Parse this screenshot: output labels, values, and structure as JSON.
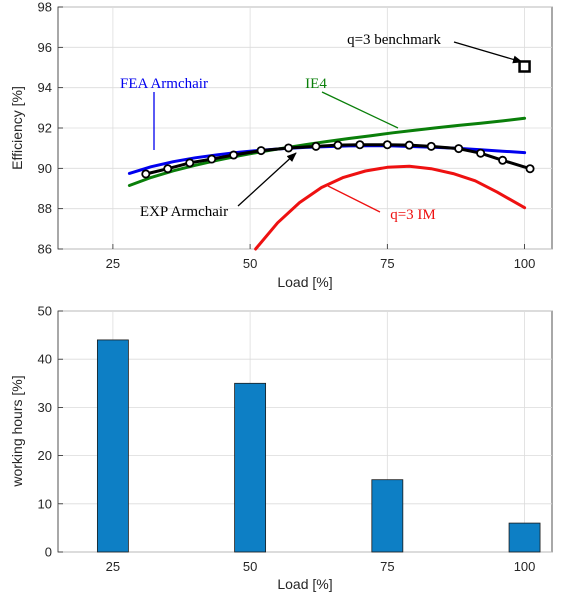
{
  "chart_data": [
    {
      "type": "line",
      "xlabel": "Load [%]",
      "ylabel": "Efficiency [%]",
      "xlim": [
        15,
        105
      ],
      "ylim": [
        86,
        98
      ],
      "xticks": [
        25,
        50,
        75,
        100
      ],
      "yticks": [
        86,
        88,
        90,
        92,
        94,
        96,
        98
      ],
      "grid": true,
      "series": [
        {
          "name": "FEA Armchair",
          "color": "#0000ee",
          "x": [
            28,
            32,
            36,
            40,
            44,
            48,
            52,
            56,
            60,
            64,
            68,
            72,
            76,
            80,
            84,
            88,
            92,
            96,
            100
          ],
          "y": [
            89.75,
            90.08,
            90.33,
            90.52,
            90.67,
            90.8,
            90.9,
            90.98,
            91.04,
            91.08,
            91.11,
            91.12,
            91.11,
            91.08,
            91.04,
            90.99,
            90.92,
            90.85,
            90.78
          ]
        },
        {
          "name": "IE4",
          "color": "#0a7f0a",
          "x": [
            28,
            32,
            36,
            40,
            44,
            48,
            52,
            56,
            60,
            64,
            68,
            72,
            76,
            80,
            84,
            88,
            92,
            96,
            100
          ],
          "y": [
            89.15,
            89.55,
            89.88,
            90.15,
            90.4,
            90.62,
            90.82,
            91.0,
            91.17,
            91.33,
            91.48,
            91.62,
            91.76,
            91.89,
            92.01,
            92.13,
            92.24,
            92.35,
            92.48
          ]
        },
        {
          "name": "EXP Armchair",
          "color": "#000000",
          "markers": true,
          "x": [
            31,
            35,
            39,
            43,
            47,
            52,
            57,
            62,
            66,
            70,
            75,
            79,
            83,
            88,
            92,
            96,
            101
          ],
          "y": [
            89.72,
            89.98,
            90.27,
            90.46,
            90.66,
            90.88,
            91.01,
            91.09,
            91.15,
            91.17,
            91.17,
            91.15,
            91.09,
            90.98,
            90.75,
            90.4,
            89.98
          ]
        },
        {
          "name": "q=3 IM",
          "color": "#ee1111",
          "x": [
            51,
            55,
            59,
            63,
            67,
            71,
            75,
            79,
            83,
            87,
            91,
            95,
            100
          ],
          "y": [
            86.0,
            87.3,
            88.3,
            89.05,
            89.55,
            89.87,
            90.05,
            90.1,
            89.98,
            89.74,
            89.38,
            88.82,
            88.05
          ]
        },
        {
          "name": "q=3 benchmark",
          "color": "#000000",
          "marker": "square",
          "x": [
            100
          ],
          "y": [
            95.05
          ]
        }
      ],
      "annotations": [
        {
          "text": "FEA Armchair",
          "color": "#0000ee"
        },
        {
          "text": "IE4",
          "color": "#0a7f0a"
        },
        {
          "text": "q=3 benchmark",
          "color": "#000000"
        },
        {
          "text": "EXP Armchair",
          "color": "#000000"
        },
        {
          "text": "q=3 IM",
          "color": "#ee1111"
        }
      ]
    },
    {
      "type": "bar",
      "xlabel": "Load [%]",
      "ylabel": "working hours [%]",
      "categories": [
        "25",
        "50",
        "75",
        "100"
      ],
      "values": [
        44,
        35,
        15,
        6
      ],
      "ylim": [
        0,
        50
      ],
      "yticks": [
        0,
        10,
        20,
        30,
        40,
        50
      ],
      "grid": true,
      "color": "#0d7fc5"
    }
  ]
}
